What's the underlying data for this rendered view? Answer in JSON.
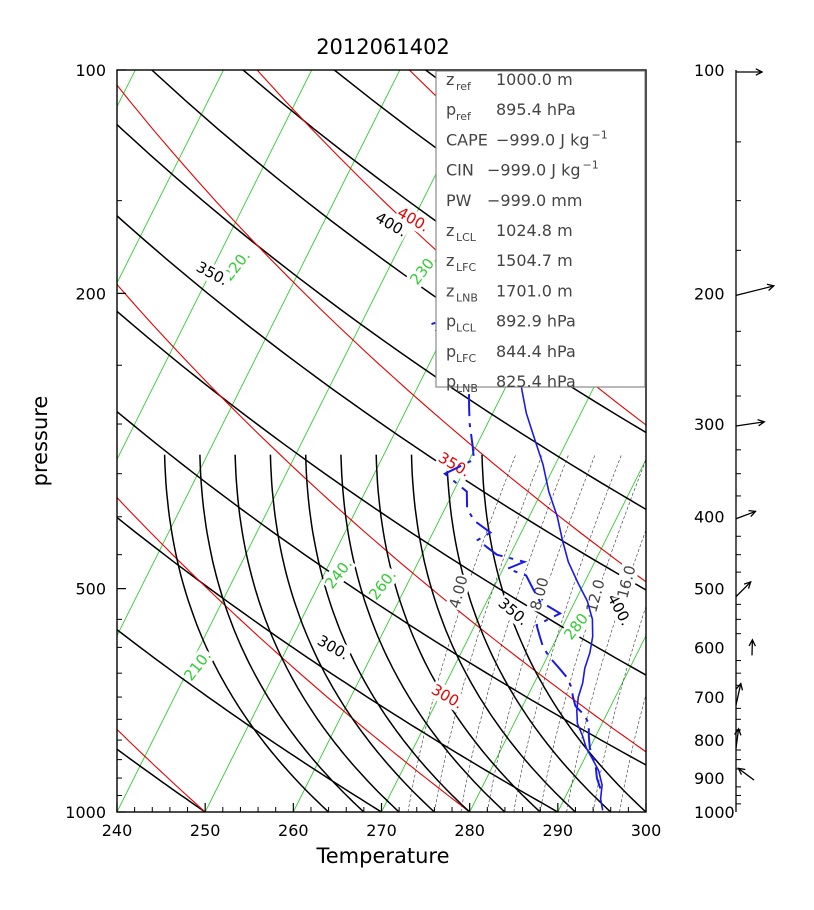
{
  "chart_data": {
    "type": "skew-t",
    "title": "2012061402",
    "xlabel": "Temperature",
    "ylabel": "pressure",
    "xlim": [
      240,
      300
    ],
    "ylim": [
      1000,
      100
    ],
    "x_ticks": [
      "240",
      "250",
      "260",
      "270",
      "280",
      "290",
      "300"
    ],
    "y_ticks": [
      "100",
      "200",
      "500",
      "1000"
    ],
    "colors": {
      "temperature": "#1a1ae6",
      "dewpoint": "#1a1ae6",
      "isotherm": "#33cc33",
      "dry_adiabat": "#000000",
      "moist_adiabat": "#e60000",
      "mixing_ratio": "#000000"
    },
    "isotherm_labels": [
      "210.",
      "220.",
      "230.",
      "240.",
      "260.",
      "280."
    ],
    "dry_adiabat_labels": [
      "300.",
      "350.",
      "350.",
      "400.",
      "400."
    ],
    "moist_adiabat_labels": [
      "300.",
      "350.",
      "400."
    ],
    "mixing_ratio_labels": [
      "4.00",
      "8.00",
      "12.0",
      "16.0"
    ],
    "temperature_profile": {
      "p": [
        995,
        960,
        920,
        880,
        850,
        820,
        790,
        760,
        730,
        700,
        670,
        640,
        610,
        580,
        550,
        520,
        490,
        460,
        430,
        400,
        370,
        340,
        310,
        290,
        270,
        250,
        235,
        220,
        205,
        190,
        175,
        160,
        150,
        140,
        130,
        120,
        112,
        106,
        100
      ],
      "t": [
        295.0,
        294.1,
        293.5,
        292.3,
        291.0,
        289.6,
        288.5,
        287.2,
        286.4,
        285.8,
        285.5,
        284.9,
        284.6,
        284.0,
        283.0,
        281.4,
        279.2,
        277.0,
        275.1,
        273.2,
        270.8,
        268.6,
        265.8,
        263.8,
        262.0,
        260.2,
        258.6,
        257.4,
        256.0,
        254.5,
        252.8,
        250.6,
        249.5,
        247.0,
        245.0,
        242.6,
        241.8,
        241.5,
        240.6
      ]
    },
    "dewpoint_profile": {
      "p": [
        930,
        900,
        860,
        820,
        790,
        760,
        740,
        720,
        700,
        680,
        660,
        640,
        620,
        600,
        580,
        560,
        540,
        520,
        500,
        480,
        470,
        460,
        450,
        440,
        430,
        420,
        405,
        390,
        370,
        350,
        335,
        320,
        300,
        285,
        270,
        255,
        240,
        230,
        220,
        212,
        206
      ],
      "t": [
        293.5,
        292.5,
        291.5,
        290.0,
        289.2,
        288.5,
        287.5,
        286.0,
        285.2,
        284.5,
        283.5,
        282.0,
        280.4,
        279.0,
        278.0,
        277.0,
        279.0,
        276.0,
        274.5,
        273.0,
        270.5,
        272.0,
        268.5,
        267.0,
        265.5,
        266.5,
        264.0,
        262.5,
        261.5,
        258.0,
        260.5,
        259.5,
        258.0,
        257.0,
        256.0,
        255.5,
        252.0,
        250.0,
        248.0,
        251.5,
        248.5
      ]
    },
    "parameters": [
      {
        "name": "z",
        "sub": "ref",
        "value": "1000.0 m"
      },
      {
        "name": "p",
        "sub": "ref",
        "value": "895.4 hPa"
      },
      {
        "name": "CAPE",
        "sub": "",
        "value": "−999.0 J kg",
        "sup": "−1"
      },
      {
        "name": "CIN",
        "sub": "",
        "value": "−999.0 J kg",
        "sup": "−1"
      },
      {
        "name": "PW",
        "sub": "",
        "value": "−999.0 mm"
      },
      {
        "name": "z",
        "sub": "LCL",
        "value": "1024.8 m"
      },
      {
        "name": "z",
        "sub": "LFC",
        "value": "1504.7 m"
      },
      {
        "name": "z",
        "sub": "LNB",
        "value": "1701.0 m"
      },
      {
        "name": "p",
        "sub": "LCL",
        "value": "892.9 hPa"
      },
      {
        "name": "p",
        "sub": "LFC",
        "value": "844.4 hPa"
      },
      {
        "name": "p",
        "sub": "LNB",
        "value": "825.4 hPa"
      }
    ],
    "wind_profile": {
      "labels": [
        "100",
        "200",
        "300",
        "400",
        "500",
        "600",
        "700",
        "800",
        "900",
        "1000"
      ],
      "p": [
        100,
        200,
        300,
        400,
        500,
        600,
        700,
        800,
        900,
        1000
      ],
      "u": [
        1.0,
        1.0,
        1.0,
        0.8,
        0.55,
        0.02,
        0.2,
        0.12,
        -0.6,
        0
      ],
      "v": [
        0.0,
        0.25,
        0.15,
        0.3,
        0.55,
        0.8,
        0.9,
        0.9,
        0.45,
        0
      ],
      "mag": [
        1.0,
        1.5,
        1.1,
        0.8,
        0.8,
        0.6,
        0.85,
        0.75,
        0.75,
        0
      ]
    }
  }
}
